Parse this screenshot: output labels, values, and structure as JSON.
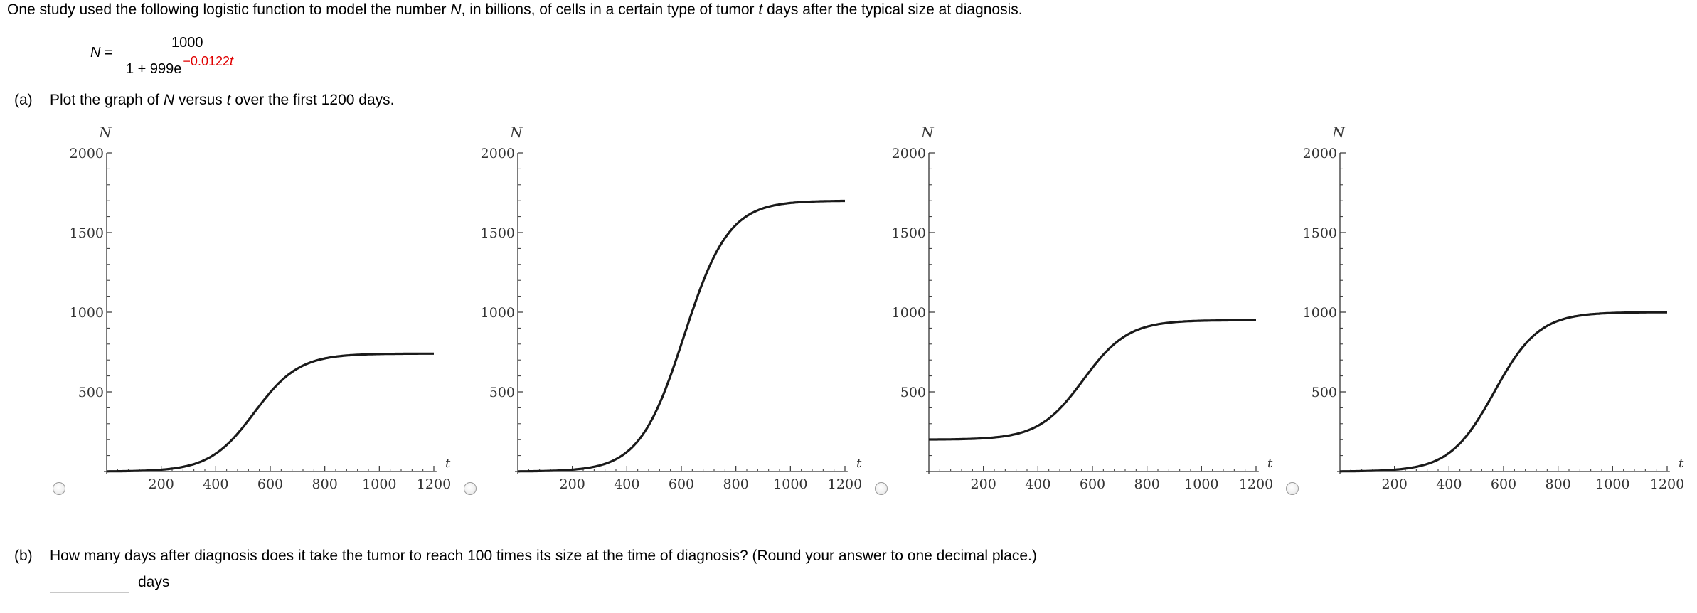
{
  "question": {
    "intro": {
      "before_N": "One study used the following logistic function to model the number ",
      "N": "N",
      "between": ", in billions, of cells in a certain type of tumor ",
      "t": "t",
      "after_t": " days after the typical size at diagnosis."
    },
    "formula": {
      "lhs_var": "N",
      "equals": " =",
      "numerator": "1000",
      "denominator": "1 + 999e",
      "exponent_coef": "−0.0122",
      "exponent_var": "t"
    },
    "part_a": {
      "label": "(a)",
      "text_before_N": "Plot the graph of ",
      "N": "N",
      "text_between": " versus ",
      "t": "t",
      "text_after": " over the first 1200 days."
    },
    "part_b": {
      "label": "(b)",
      "text": "How many days after diagnosis does it take the tumor to reach 100 times its size at the time of diagnosis? (Round your answer to one decimal place.)",
      "input_value": "",
      "units": "days"
    }
  },
  "colors": {
    "formula_exponent": "#e00000",
    "curve": "#1a1a1a",
    "axis": "#333333"
  },
  "chart_data": [
    {
      "type": "line",
      "x_axis_label": "t",
      "y_axis_label": "N",
      "xlim": [
        0,
        1200
      ],
      "ylim": [
        0,
        2000
      ],
      "x_ticks": [
        "200",
        "400",
        "600",
        "800",
        "1000",
        "1200"
      ],
      "y_ticks": [
        "500",
        "1000",
        "1500",
        "2000"
      ],
      "grid": false,
      "series": [
        {
          "model": {
            "L": 740,
            "A": 739,
            "k": 0.0122
          }
        }
      ]
    },
    {
      "type": "line",
      "x_axis_label": "t",
      "y_axis_label": "N",
      "xlim": [
        0,
        1200
      ],
      "ylim": [
        0,
        2000
      ],
      "x_ticks": [
        "200",
        "400",
        "600",
        "800",
        "1000",
        "1200"
      ],
      "y_ticks": [
        "500",
        "1000",
        "1500",
        "2000"
      ],
      "grid": false,
      "series": [
        {
          "model": {
            "L": 1700,
            "A": 1699,
            "k": 0.0122
          }
        }
      ]
    },
    {
      "type": "line",
      "x_axis_label": "t",
      "y_axis_label": "N",
      "xlim": [
        0,
        1200
      ],
      "ylim": [
        0,
        2000
      ],
      "x_ticks": [
        "200",
        "400",
        "600",
        "800",
        "1000",
        "1200"
      ],
      "y_ticks": [
        "500",
        "1000",
        "1500",
        "2000"
      ],
      "grid": false,
      "series": [
        {
          "model": {
            "offset": 200,
            "L": 750,
            "A": 999,
            "k": 0.0122
          }
        }
      ]
    },
    {
      "type": "line",
      "x_axis_label": "t",
      "y_axis_label": "N",
      "xlim": [
        0,
        1200
      ],
      "ylim": [
        0,
        2000
      ],
      "x_ticks": [
        "200",
        "400",
        "600",
        "800",
        "1000",
        "1200"
      ],
      "y_ticks": [
        "500",
        "1000",
        "1500",
        "2000"
      ],
      "grid": false,
      "series": [
        {
          "model": {
            "L": 1000,
            "A": 999,
            "k": 0.0122
          }
        }
      ]
    }
  ]
}
